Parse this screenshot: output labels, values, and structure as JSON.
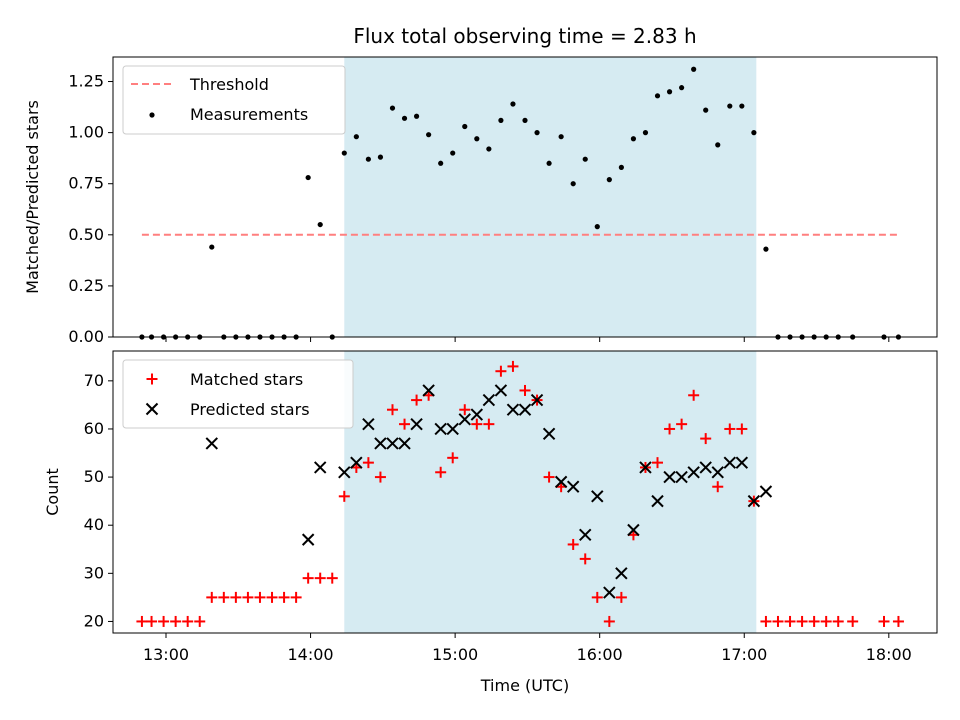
{
  "colors": {
    "observing_window": "#add8e6",
    "threshold": "#ff7f7f",
    "measurement": "#000000",
    "matched": "#ff0000",
    "predicted": "#000000"
  },
  "chart_data": [
    {
      "type": "scatter",
      "title": "Flux total observing time = 2.83 h",
      "xlabel": "",
      "ylabel": "Matched/Predicted stars",
      "xlim": [
        "12:38",
        "18:20"
      ],
      "ylim": [
        0,
        1.37
      ],
      "yticks": [
        "0.00",
        "0.25",
        "0.50",
        "0.75",
        "1.00",
        "1.25"
      ],
      "ytick_values": [
        0,
        0.25,
        0.5,
        0.75,
        1.0,
        1.25
      ],
      "xticks": [
        "13:00",
        "14:00",
        "15:00",
        "16:00",
        "17:00",
        "18:00"
      ],
      "legend_position": "upper left",
      "grid": false,
      "observing_window": [
        "14:14",
        "17:05"
      ],
      "threshold": {
        "name": "Threshold",
        "y": 0.5,
        "x": [
          "12:50",
          "18:05"
        ]
      },
      "series": [
        {
          "name": "Measurements",
          "x": [
            "12:50",
            "12:54",
            "12:59",
            "13:04",
            "13:09",
            "13:14",
            "13:19",
            "13:24",
            "13:29",
            "13:34",
            "13:39",
            "13:44",
            "13:49",
            "13:54",
            "13:59",
            "14:04",
            "14:09",
            "14:14",
            "14:19",
            "14:24",
            "14:29",
            "14:34",
            "14:39",
            "14:44",
            "14:49",
            "14:54",
            "14:59",
            "15:04",
            "15:09",
            "15:14",
            "15:19",
            "15:24",
            "15:29",
            "15:34",
            "15:39",
            "15:44",
            "15:49",
            "15:54",
            "15:59",
            "16:04",
            "16:09",
            "16:14",
            "16:19",
            "16:24",
            "16:29",
            "16:34",
            "16:39",
            "16:44",
            "16:49",
            "16:54",
            "16:59",
            "17:04",
            "17:09",
            "17:14",
            "17:19",
            "17:24",
            "17:29",
            "17:34",
            "17:39",
            "17:45",
            "17:58",
            "18:04"
          ],
          "y": [
            0,
            0,
            0,
            0,
            0,
            0,
            0.44,
            0,
            0,
            0,
            0,
            0,
            0,
            0,
            0.78,
            0.55,
            0,
            0.9,
            0.98,
            0.87,
            0.88,
            1.12,
            1.07,
            1.08,
            0.99,
            0.85,
            0.9,
            1.03,
            0.97,
            0.92,
            1.06,
            1.14,
            1.06,
            1.0,
            0.85,
            0.98,
            0.75,
            0.87,
            0.54,
            0.77,
            0.83,
            0.97,
            1.0,
            1.18,
            1.2,
            1.22,
            1.31,
            1.11,
            0.94,
            1.13,
            1.13,
            1.0,
            0.43,
            0,
            0,
            0,
            0,
            0,
            0,
            0,
            0,
            0
          ]
        }
      ]
    },
    {
      "type": "scatter",
      "title": "",
      "xlabel": "Time (UTC)",
      "ylabel": "Count",
      "xlim": [
        "12:38",
        "18:20"
      ],
      "ylim": [
        17.6,
        76.2
      ],
      "yticks": [
        "20",
        "30",
        "40",
        "50",
        "60",
        "70"
      ],
      "ytick_values": [
        20,
        30,
        40,
        50,
        60,
        70
      ],
      "xticks": [
        "13:00",
        "14:00",
        "15:00",
        "16:00",
        "17:00",
        "18:00"
      ],
      "legend_position": "upper left",
      "grid": false,
      "observing_window": [
        "14:14",
        "17:05"
      ],
      "series": [
        {
          "name": "Matched stars",
          "x": [
            "12:50",
            "12:54",
            "12:59",
            "13:04",
            "13:09",
            "13:14",
            "13:19",
            "13:24",
            "13:29",
            "13:34",
            "13:39",
            "13:44",
            "13:49",
            "13:54",
            "13:59",
            "14:04",
            "14:09",
            "14:14",
            "14:19",
            "14:24",
            "14:29",
            "14:34",
            "14:39",
            "14:44",
            "14:49",
            "14:54",
            "14:59",
            "15:04",
            "15:09",
            "15:14",
            "15:19",
            "15:24",
            "15:29",
            "15:34",
            "15:39",
            "15:44",
            "15:49",
            "15:54",
            "15:59",
            "16:04",
            "16:09",
            "16:14",
            "16:19",
            "16:24",
            "16:29",
            "16:34",
            "16:39",
            "16:44",
            "16:49",
            "16:54",
            "16:59",
            "17:04",
            "17:09",
            "17:14",
            "17:19",
            "17:24",
            "17:29",
            "17:34",
            "17:39",
            "17:45",
            "17:58",
            "18:04"
          ],
          "y": [
            20,
            20,
            20,
            20,
            20,
            20,
            25,
            25,
            25,
            25,
            25,
            25,
            25,
            25,
            29,
            29,
            29,
            46,
            52,
            53,
            50,
            64,
            61,
            66,
            67,
            51,
            54,
            64,
            61,
            61,
            72,
            73,
            68,
            66,
            50,
            48,
            36,
            33,
            25,
            20,
            25,
            38,
            52,
            53,
            60,
            61,
            67,
            58,
            48,
            60,
            60,
            45,
            20,
            20,
            20,
            20,
            20,
            20,
            20,
            20,
            20,
            20
          ]
        },
        {
          "name": "Predicted stars",
          "x": [
            "13:19",
            "13:59",
            "14:04",
            "14:14",
            "14:19",
            "14:24",
            "14:29",
            "14:34",
            "14:39",
            "14:44",
            "14:49",
            "14:54",
            "14:59",
            "15:04",
            "15:09",
            "15:14",
            "15:19",
            "15:24",
            "15:29",
            "15:34",
            "15:39",
            "15:44",
            "15:49",
            "15:54",
            "15:59",
            "16:04",
            "16:09",
            "16:14",
            "16:19",
            "16:24",
            "16:29",
            "16:34",
            "16:39",
            "16:44",
            "16:49",
            "16:54",
            "16:59",
            "17:04",
            "17:09"
          ],
          "y": [
            57,
            37,
            52,
            51,
            53,
            61,
            57,
            57,
            57,
            61,
            68,
            60,
            60,
            62,
            63,
            66,
            68,
            64,
            64,
            66,
            59,
            49,
            48,
            38,
            46,
            26,
            30,
            39,
            52,
            45,
            50,
            50,
            51,
            52,
            51,
            53,
            53,
            45,
            47
          ]
        }
      ]
    }
  ]
}
